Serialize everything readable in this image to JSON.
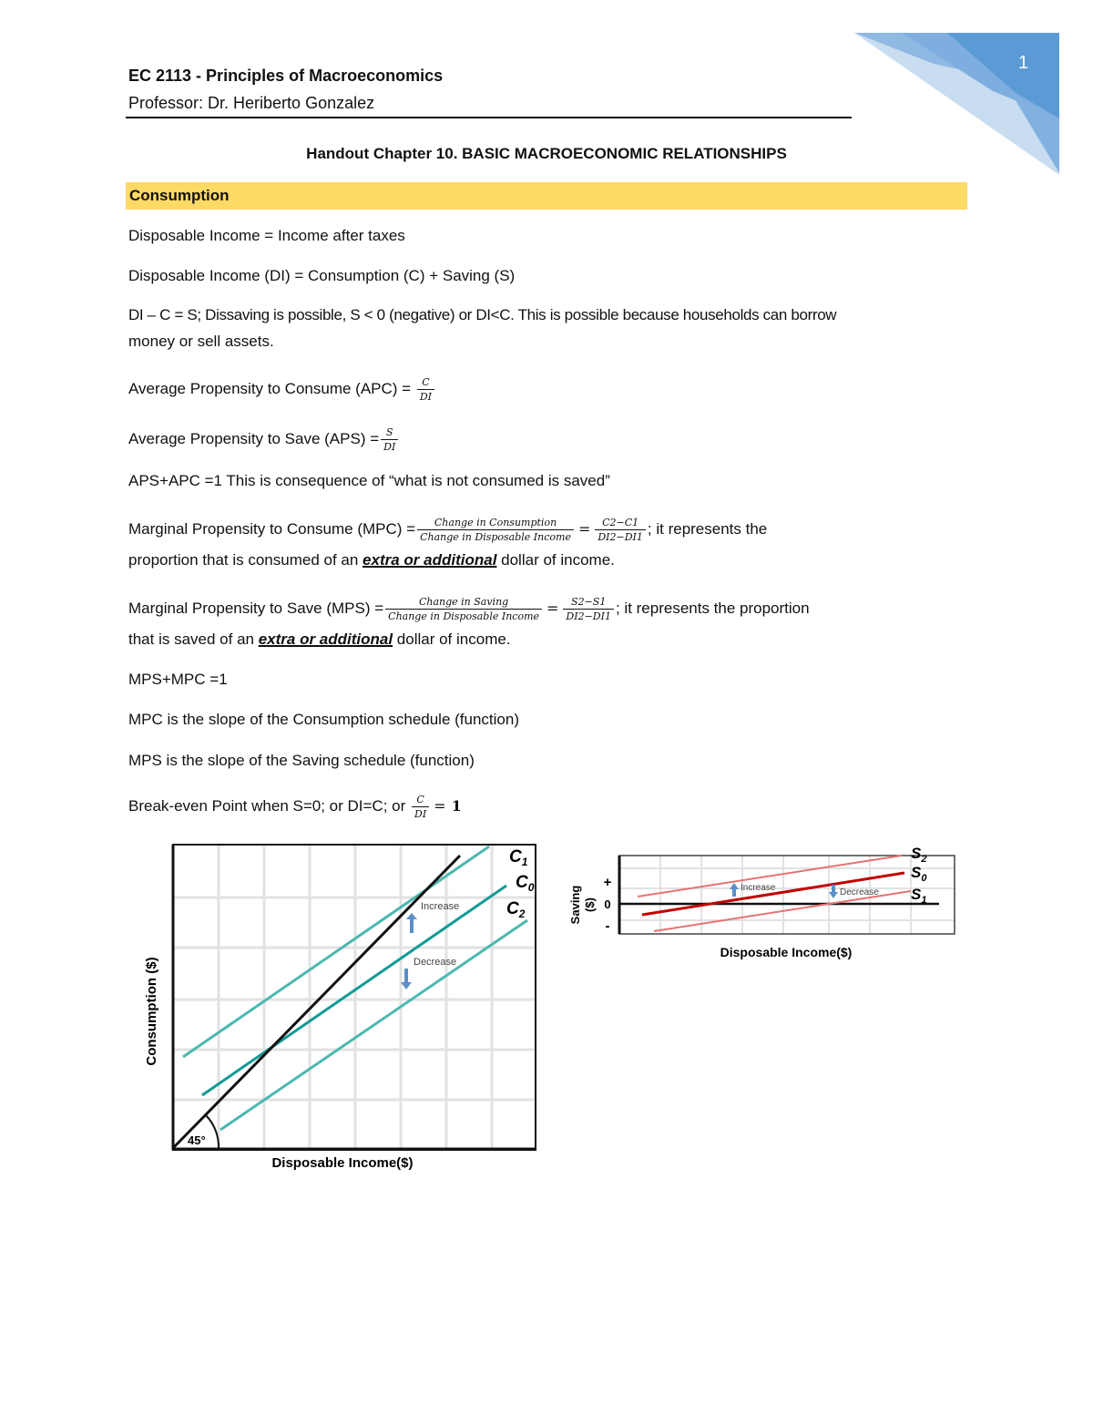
{
  "header": {
    "course": "EC 2113 - Principles of Macroeconomics",
    "professor": "Professor: Dr. Heriberto Gonzalez",
    "page_number": "1",
    "accent_color": "#5b9bd5"
  },
  "title": "Handout Chapter 10. BASIC MACROECONOMIC RELATIONSHIPS",
  "section": {
    "label": "Consumption",
    "highlight_color": "#ffd966"
  },
  "lines": {
    "di_def": "Disposable Income = Income after taxes",
    "di_eq": "Disposable Income (DI) = Consumption (C) + Saving (S)",
    "dissaving_1": "DI – C = S; Dissaving is possible,  S < 0 (negative) or DI<C. This is possible because households can borrow",
    "dissaving_2": "money or sell assets.",
    "apc_label": "Average Propensity to Consume (APC) = ",
    "apc_num": "C",
    "apc_den": "DI",
    "aps_label": "Average Propensity to Save (APS) =",
    "aps_num": "S",
    "aps_den": "DI",
    "aps_apc": "APS+APC =1 This is consequence of “what is not consumed is saved”",
    "mpc_label": "Marginal Propensity to Consume (MPC) =",
    "mpc_num": "Change in Consumption",
    "mpc_den": "Change in Disposable Income",
    "mpc_num2": "C2−C1",
    "mpc_den2": "DI2−DI1",
    "mpc_tail": "; it represents the",
    "mpc_2a": "proportion that is consumed of an ",
    "mpc_2b": "extra or additional",
    "mpc_2c": " dollar of income.",
    "mps_label": "Marginal Propensity to Save (MPS) =",
    "mps_num": "Change in Saving",
    "mps_den": "Change in Disposable Income",
    "mps_num2": "S2−S1",
    "mps_den2": "DI2−DI1",
    "mps_tail": "; it represents the proportion",
    "mps_2a": "that is saved of an ",
    "mps_2b": "extra or additional",
    "mps_2c": " dollar of income.",
    "mps_mpc": "MPS+MPC =1",
    "mpc_slope": "MPC is the slope of the Consumption schedule (function)",
    "mps_slope": "MPS is the slope of the Saving schedule (function)",
    "breakeven": "Break-even Point when S=0; or DI=C; or ",
    "be_num": "C",
    "be_den": "DI",
    "equals": "=",
    "one": "1"
  },
  "consumption_diagram": {
    "y_label": "Consumption ($)",
    "x_label": "Disposable Income($)",
    "angle": "45°",
    "c1": "C",
    "c1_sub": "1",
    "c0": "C",
    "c0_sub": "0",
    "c2": "C",
    "c2_sub": "2",
    "increase": "Increase",
    "decrease": "Decrease",
    "line_color": "#4cb8b0",
    "c0_color": "#119a96",
    "arrow_color": "#5b8fc8"
  },
  "saving_diagram": {
    "y_label": "Saving",
    "y_unit": "($)",
    "x_label": "Disposable Income($)",
    "plus": "+",
    "zero": "0",
    "minus": "-",
    "s2": "S",
    "s2_sub": "2",
    "s0": "S",
    "s0_sub": "0",
    "s1": "S",
    "s1_sub": "1",
    "increase": "Increase",
    "decrease": "Decrease",
    "line_color": "#e57373",
    "s0_color": "#c00000"
  }
}
